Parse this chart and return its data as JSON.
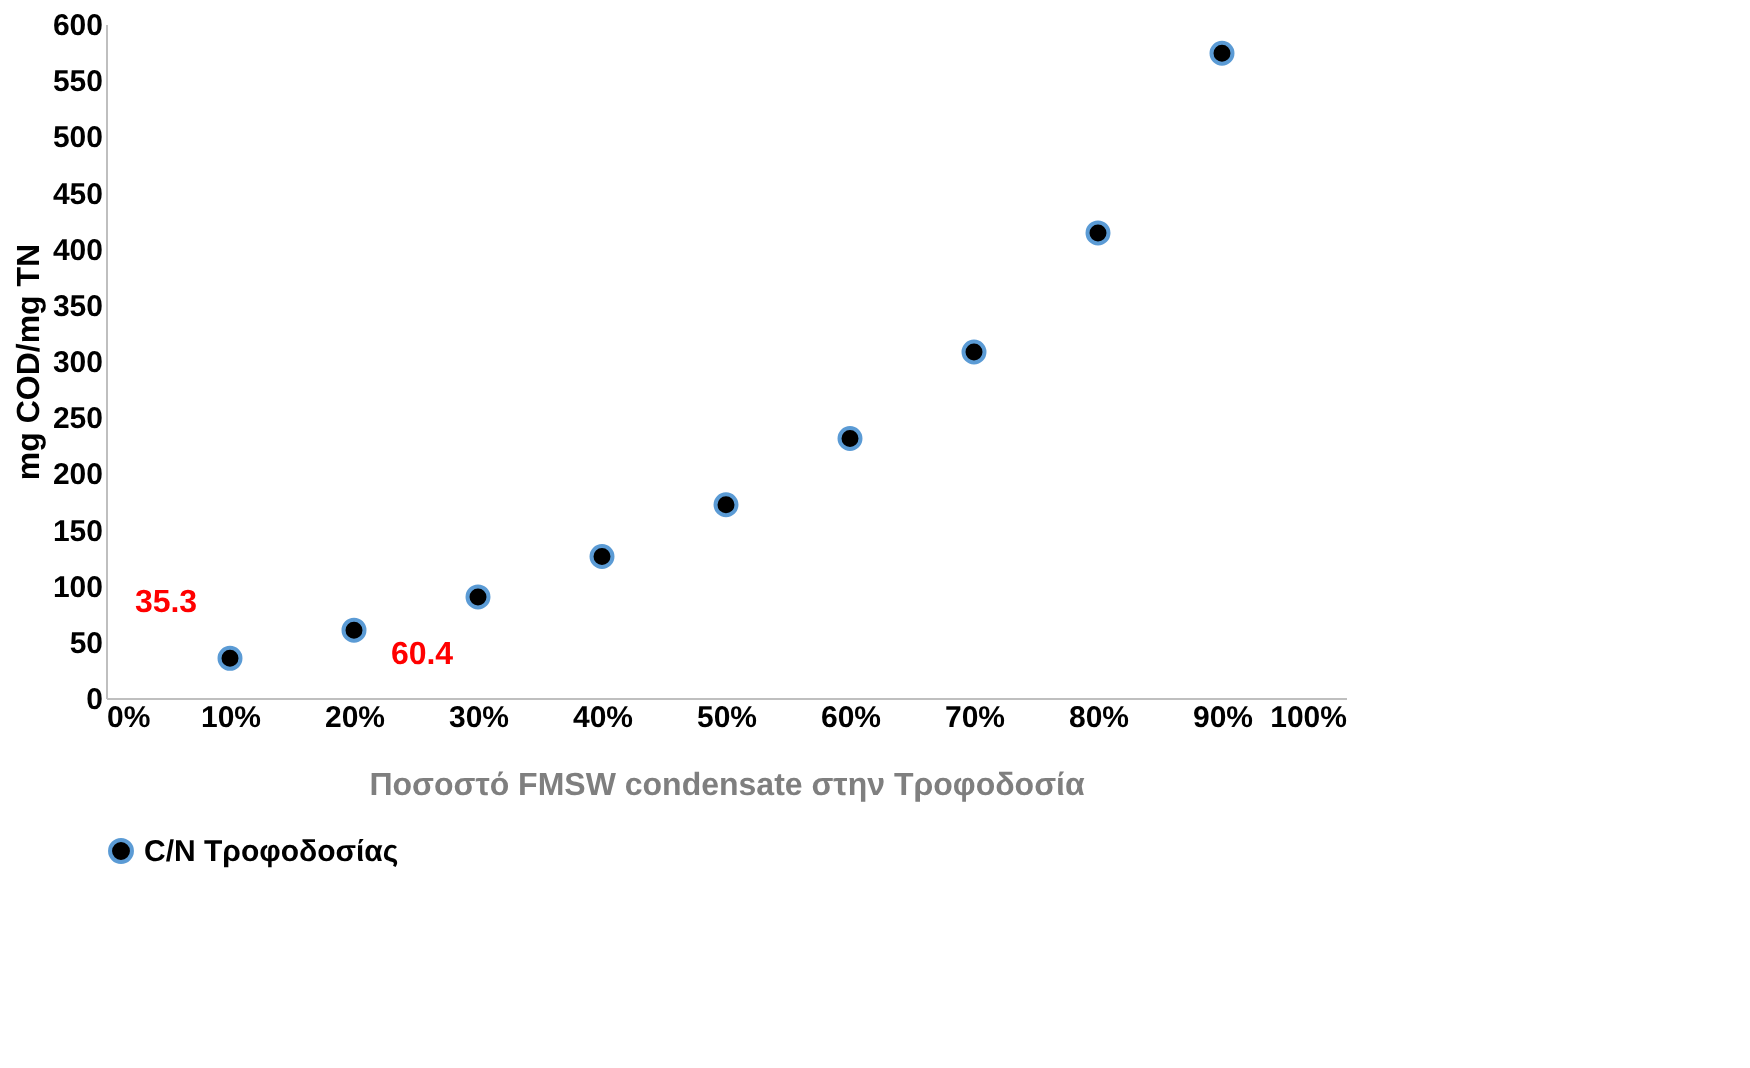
{
  "chart_data": {
    "type": "scatter",
    "xlabel": "Ποσοστό FMSW condensate στην Τροφοδοσία",
    "ylabel": "mg COD/mg TN",
    "x": [
      10,
      20,
      30,
      40,
      50,
      60,
      70,
      80,
      90
    ],
    "series": [
      {
        "name": "C/N Τροφοδοσίας",
        "color": "#000000",
        "values": [
          35.3,
          60.4,
          90,
          126,
          172,
          231,
          308,
          414,
          574
        ]
      }
    ],
    "value_labels": [
      "35.3",
      "60.4",
      null,
      null,
      null,
      null,
      null,
      null,
      null
    ],
    "xlim": [
      0,
      100
    ],
    "xticks": [
      {
        "value": 0,
        "label": "0%"
      },
      {
        "value": 10,
        "label": "10%"
      },
      {
        "value": 20,
        "label": "20%"
      },
      {
        "value": 30,
        "label": "30%"
      },
      {
        "value": 40,
        "label": "40%"
      },
      {
        "value": 50,
        "label": "50%"
      },
      {
        "value": 60,
        "label": "60%"
      },
      {
        "value": 70,
        "label": "70%"
      },
      {
        "value": 80,
        "label": "80%"
      },
      {
        "value": 90,
        "label": "90%"
      },
      {
        "value": 100,
        "label": "100%"
      }
    ],
    "ylim": [
      0,
      600
    ],
    "yticks": [
      0,
      50,
      100,
      150,
      200,
      250,
      300,
      350,
      400,
      450,
      500,
      550,
      600
    ],
    "grid": false,
    "legend": "bottom",
    "marker": "circle"
  }
}
